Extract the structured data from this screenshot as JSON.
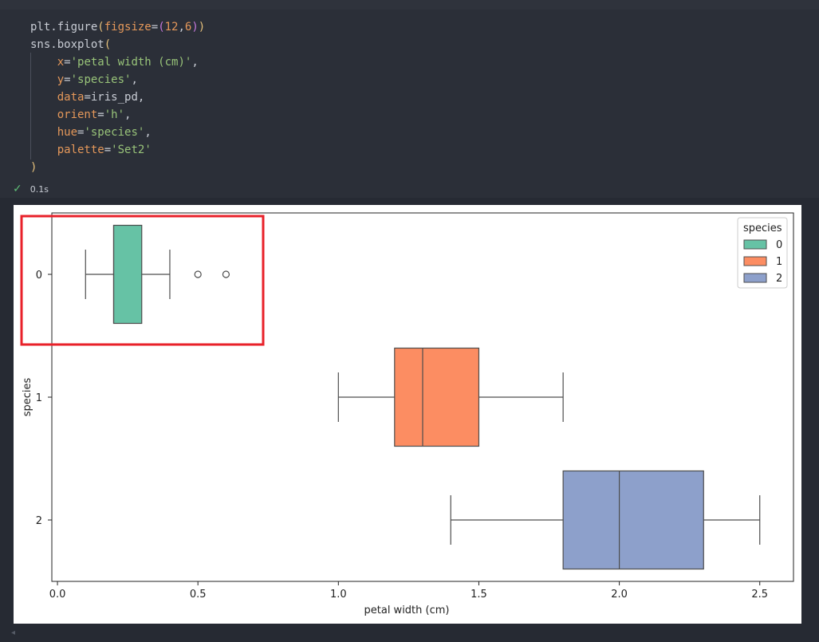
{
  "code": {
    "lines": [
      [
        [
          "plt.figure",
          ""
        ],
        [
          "(",
          "kw"
        ],
        [
          "figsize",
          "arg"
        ],
        [
          "=",
          ""
        ],
        [
          "(",
          "par"
        ],
        [
          "12",
          "num"
        ],
        [
          ",",
          ""
        ],
        [
          "6",
          "num"
        ],
        [
          ")",
          "par"
        ],
        [
          ")",
          "kw"
        ]
      ],
      [
        [
          "sns.boxplot",
          ""
        ],
        [
          "(",
          "kw"
        ]
      ],
      [
        [
          "    ",
          ""
        ],
        [
          "x",
          "arg"
        ],
        [
          "=",
          ""
        ],
        [
          "'petal width (cm)'",
          "str"
        ],
        [
          ",",
          ""
        ]
      ],
      [
        [
          "    ",
          ""
        ],
        [
          "y",
          "arg"
        ],
        [
          "=",
          ""
        ],
        [
          "'species'",
          "str"
        ],
        [
          ",",
          ""
        ]
      ],
      [
        [
          "    ",
          ""
        ],
        [
          "data",
          "arg"
        ],
        [
          "=iris_pd,",
          ""
        ]
      ],
      [
        [
          "    ",
          ""
        ],
        [
          "orient",
          "arg"
        ],
        [
          "=",
          ""
        ],
        [
          "'h'",
          "str"
        ],
        [
          ",",
          ""
        ]
      ],
      [
        [
          "    ",
          ""
        ],
        [
          "hue",
          "arg"
        ],
        [
          "=",
          ""
        ],
        [
          "'species'",
          "str"
        ],
        [
          ",",
          ""
        ]
      ],
      [
        [
          "    ",
          ""
        ],
        [
          "palette",
          "arg"
        ],
        [
          "=",
          ""
        ],
        [
          "'Set2'",
          "str"
        ]
      ],
      [
        [
          ")",
          "kw"
        ]
      ]
    ]
  },
  "status": {
    "icon": "check-icon",
    "elapsed": "0.1s"
  },
  "chart_data": {
    "type": "boxplot",
    "orientation": "horizontal",
    "xlabel": "petal width (cm)",
    "ylabel": "species",
    "xlim": [
      -0.02,
      2.62
    ],
    "xticks": [
      0.0,
      0.5,
      1.0,
      1.5,
      2.0,
      2.5
    ],
    "xtick_labels": [
      "0.0",
      "0.5",
      "1.0",
      "1.5",
      "2.0",
      "2.5"
    ],
    "categories": [
      "0",
      "1",
      "2"
    ],
    "series": [
      {
        "name": "0",
        "color": "#66c2a5",
        "whisker_low": 0.1,
        "q1": 0.2,
        "median": 0.2,
        "q3": 0.3,
        "whisker_high": 0.4,
        "outliers": [
          0.5,
          0.6
        ]
      },
      {
        "name": "1",
        "color": "#fc8d62",
        "whisker_low": 1.0,
        "q1": 1.2,
        "median": 1.3,
        "q3": 1.5,
        "whisker_high": 1.8,
        "outliers": []
      },
      {
        "name": "2",
        "color": "#8da0cb",
        "whisker_low": 1.4,
        "q1": 1.8,
        "median": 2.0,
        "q3": 2.3,
        "whisker_high": 2.5,
        "outliers": []
      }
    ],
    "legend": {
      "title": "species",
      "position": "top-right"
    },
    "highlight_color": "#e8212a"
  }
}
